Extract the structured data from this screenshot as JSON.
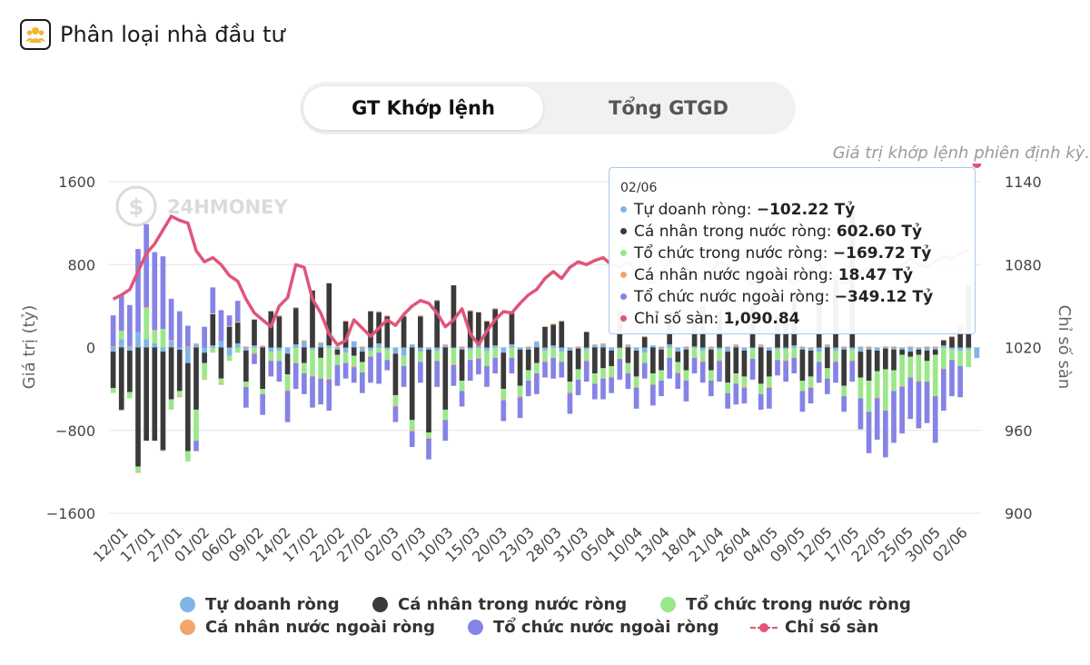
{
  "header": {
    "title": "Phân loại nhà đầu tư",
    "icon": "investors-icon"
  },
  "tabs": [
    {
      "label": "GT Khớp lệnh",
      "active": true
    },
    {
      "label": "Tổng GTGD",
      "active": false
    }
  ],
  "subtitle": "Giá trị khớp lệnh phiên định kỳ.",
  "watermark": "24HMONEY",
  "colors": {
    "tu_doanh": "#7fb5e6",
    "ca_nhan_trong_nuoc": "#3a3a3a",
    "to_chuc_trong_nuoc": "#9be88a",
    "ca_nhan_nuoc_ngoai": "#f2a66c",
    "to_chuc_nuoc_ngoai": "#8583e6",
    "index_line": "#e0557a"
  },
  "tooltip": {
    "date": "02/06",
    "rows": [
      {
        "label": "Tự doanh ròng:",
        "value": "−102.22 Tỷ",
        "color": "#7fb5e6"
      },
      {
        "label": "Cá nhân trong nước ròng:",
        "value": "602.60 Tỷ",
        "color": "#3a3a3a"
      },
      {
        "label": "Tổ chức trong nước ròng:",
        "value": "−169.72 Tỷ",
        "color": "#9be88a"
      },
      {
        "label": "Cá nhân nước ngoài ròng:",
        "value": "18.47 Tỷ",
        "color": "#f2a66c"
      },
      {
        "label": "Tổ chức nước ngoài ròng:",
        "value": "−349.12 Tỷ",
        "color": "#8583e6"
      },
      {
        "label": "Chỉ số sàn:",
        "value": "1,090.84",
        "color": "#e0557a"
      }
    ]
  },
  "legend": [
    {
      "label": "Tự doanh ròng",
      "color": "#7fb5e6",
      "kind": "dot"
    },
    {
      "label": "Cá nhân trong nước ròng",
      "color": "#3a3a3a",
      "kind": "dot"
    },
    {
      "label": "Tổ chức trong nước ròng",
      "color": "#9be88a",
      "kind": "dot"
    },
    {
      "label": "Cá nhân nước ngoài ròng",
      "color": "#f2a66c",
      "kind": "dot"
    },
    {
      "label": "Tổ chức nước ngoài ròng",
      "color": "#8583e6",
      "kind": "dot"
    },
    {
      "label": "Chỉ số sàn",
      "color": "#e0557a",
      "kind": "line"
    }
  ],
  "chart_data": {
    "type": "bar",
    "stacked": true,
    "ylabel": "Giá trị (tỷ)",
    "y2label": "Chỉ số sàn",
    "ylim": [
      -1600,
      1600
    ],
    "yticks": [
      "1600",
      "800",
      "0",
      "−800",
      "−1600"
    ],
    "y2lim": [
      900,
      1140
    ],
    "y2ticks": [
      "1140",
      "1080",
      "1020",
      "960",
      "900"
    ],
    "grid": true,
    "xticklabels": [
      "12/01",
      "17/01",
      "27/01",
      "01/02",
      "06/02",
      "09/02",
      "14/02",
      "17/02",
      "22/02",
      "27/02",
      "02/03",
      "07/03",
      "10/03",
      "15/03",
      "20/03",
      "23/03",
      "28/03",
      "31/03",
      "05/04",
      "10/04",
      "13/04",
      "18/04",
      "21/04",
      "26/04",
      "04/05",
      "09/05",
      "12/05",
      "17/05",
      "22/05",
      "25/05",
      "30/05",
      "02/06"
    ],
    "series": [
      {
        "name": "Tự doanh ròng",
        "values": [
          -40,
          80,
          -30,
          150,
          80,
          40,
          -40,
          60,
          -20,
          -150,
          30,
          -50,
          20,
          60,
          -80,
          40,
          -30,
          20,
          10,
          -40,
          -30,
          -60,
          30,
          60,
          -20,
          40,
          20,
          -20,
          -50,
          60,
          -40,
          -30,
          40,
          -20,
          -60,
          -80,
          30,
          -40,
          -20,
          -30,
          20,
          -10,
          -20,
          -20,
          40,
          -30,
          20,
          -50,
          30,
          -20,
          -20,
          50,
          -30,
          20,
          -40,
          -30,
          -10,
          -20,
          20,
          30,
          -30,
          -10,
          20,
          -30,
          -50,
          20,
          -20,
          30,
          -40,
          -20,
          10,
          -30,
          -20,
          -20,
          -40,
          20,
          -30,
          -10,
          20,
          -30,
          -20,
          -20,
          20,
          -20,
          -30,
          -40,
          20,
          -30,
          -20,
          -20,
          -40,
          -20,
          -30,
          -10,
          -20,
          -20,
          -40,
          -20,
          -30,
          -20,
          20,
          -20,
          -30,
          -20,
          -102.22
        ]
      },
      {
        "name": "Cá nhân trong nước ròng",
        "values": [
          -350,
          -600,
          -400,
          -1150,
          -900,
          -900,
          -950,
          -500,
          -400,
          -850,
          -600,
          -100,
          300,
          -300,
          200,
          200,
          -300,
          250,
          -400,
          350,
          300,
          -200,
          350,
          -150,
          550,
          -100,
          600,
          -50,
          250,
          -80,
          -100,
          350,
          300,
          300,
          -400,
          300,
          -700,
          300,
          -800,
          450,
          -600,
          600,
          -300,
          350,
          300,
          250,
          350,
          -350,
          300,
          -350,
          -200,
          -150,
          200,
          200,
          250,
          -300,
          -200,
          150,
          -250,
          -200,
          -150,
          350,
          -150,
          -250,
          100,
          -250,
          -200,
          300,
          -100,
          -200,
          300,
          400,
          -200,
          350,
          -300,
          -250,
          -250,
          400,
          -350,
          -250,
          300,
          250,
          500,
          -300,
          -250,
          400,
          -200,
          700,
          -350,
          1300,
          -250,
          -300,
          -200,
          -200,
          -200,
          -50,
          -50,
          -50,
          -100,
          -50,
          50,
          100,
          200,
          602.6
        ]
      },
      {
        "name": "Tổ chức trong nước ròng",
        "values": [
          -50,
          80,
          -60,
          -50,
          300,
          120,
          180,
          -100,
          -50,
          -100,
          -300,
          -150,
          -50,
          -50,
          -50,
          -50,
          -50,
          -50,
          -50,
          -80,
          -100,
          -150,
          -150,
          -100,
          -250,
          -200,
          -300,
          -100,
          -100,
          -100,
          -100,
          -50,
          -50,
          -100,
          -100,
          -100,
          -100,
          -100,
          -50,
          -100,
          -100,
          -150,
          -100,
          -100,
          -100,
          -150,
          -100,
          -100,
          -100,
          -100,
          -100,
          -100,
          -100,
          -100,
          -100,
          -100,
          -100,
          -100,
          -100,
          -100,
          -100,
          -100,
          -100,
          -100,
          -100,
          -100,
          -100,
          -100,
          -100,
          -100,
          -100,
          -100,
          -100,
          -100,
          -100,
          -100,
          -100,
          -100,
          -100,
          -100,
          -100,
          -100,
          -100,
          -100,
          -100,
          -100,
          -100,
          -100,
          -100,
          -100,
          -200,
          -300,
          -250,
          -400,
          -200,
          -300,
          -200,
          -250,
          -200,
          -400,
          -200,
          -100,
          -150,
          -169.72
        ]
      },
      {
        "name": "Cá nhân nước ngoài ròng",
        "values": [
          10,
          -10,
          10,
          -10,
          10,
          10,
          -10,
          10,
          -10,
          10,
          10,
          -10,
          10,
          -10,
          10,
          10,
          10,
          -10,
          10,
          -10,
          10,
          -10,
          10,
          10,
          -10,
          10,
          -10,
          10,
          10,
          -10,
          10,
          -10,
          10,
          10,
          -10,
          10,
          -10,
          10,
          -10,
          10,
          10,
          -10,
          10,
          10,
          -10,
          10,
          10,
          -10,
          10,
          -10,
          10,
          10,
          -10,
          10,
          10,
          -10,
          10,
          -10,
          10,
          10,
          -10,
          10,
          10,
          -10,
          10,
          -10,
          10,
          10,
          -10,
          10,
          10,
          -10,
          10,
          -10,
          10,
          10,
          -10,
          10,
          10,
          -10,
          10,
          -10,
          10,
          10,
          -10,
          10,
          10,
          -10,
          10,
          -10,
          10,
          10,
          -10,
          10,
          10,
          -10,
          10,
          -10,
          10,
          10,
          -10,
          10,
          18.47
        ]
      },
      {
        "name": "Tổ chức nước ngoài ròng",
        "values": [
          300,
          350,
          400,
          800,
          800,
          750,
          700,
          400,
          350,
          200,
          -100,
          200,
          250,
          300,
          100,
          200,
          -200,
          -100,
          -200,
          -150,
          -200,
          -300,
          -250,
          -200,
          -300,
          -250,
          -300,
          -200,
          -150,
          -150,
          -200,
          -250,
          -300,
          -100,
          -150,
          -200,
          -150,
          -200,
          -200,
          -250,
          -200,
          -200,
          -150,
          -200,
          -150,
          -200,
          -150,
          -200,
          -150,
          -200,
          -150,
          -200,
          -150,
          -200,
          -150,
          -200,
          -150,
          -200,
          -150,
          -200,
          -150,
          -200,
          -150,
          -200,
          -150,
          -200,
          -150,
          -200,
          -150,
          -200,
          -150,
          -200,
          -150,
          -200,
          -150,
          -200,
          -150,
          -200,
          -150,
          -200,
          -150,
          -200,
          -150,
          -200,
          -150,
          -200,
          -150,
          -200,
          -150,
          -200,
          -300,
          -400,
          -400,
          -450,
          -500,
          -450,
          -400,
          -450,
          -400,
          -450,
          -400,
          -350,
          -300,
          -349.12
        ]
      }
    ],
    "index_series": {
      "name": "Chỉ số sàn",
      "values": [
        1055,
        1058,
        1062,
        1075,
        1088,
        1095,
        1105,
        1115,
        1112,
        1110,
        1090,
        1082,
        1085,
        1080,
        1072,
        1068,
        1055,
        1045,
        1040,
        1035,
        1050,
        1056,
        1080,
        1078,
        1055,
        1045,
        1030,
        1022,
        1025,
        1040,
        1034,
        1028,
        1034,
        1040,
        1036,
        1044,
        1050,
        1054,
        1052,
        1045,
        1035,
        1040,
        1048,
        1030,
        1022,
        1032,
        1040,
        1046,
        1045,
        1052,
        1058,
        1062,
        1070,
        1075,
        1070,
        1078,
        1082,
        1080,
        1083,
        1085,
        1080,
        1078,
        1082,
        1076,
        1070,
        1066,
        1074,
        1082,
        1086,
        1078,
        1072,
        1068,
        1074,
        1082,
        1080,
        1076,
        1070,
        1066,
        1070,
        1074,
        1078,
        1072,
        1066,
        1070,
        1076,
        1080,
        1074,
        1070,
        1066,
        1070,
        1074,
        1078,
        1080,
        1076,
        1072,
        1080,
        1084,
        1080,
        1078,
        1082,
        1086,
        1084,
        1088,
        1090.84
      ]
    }
  }
}
